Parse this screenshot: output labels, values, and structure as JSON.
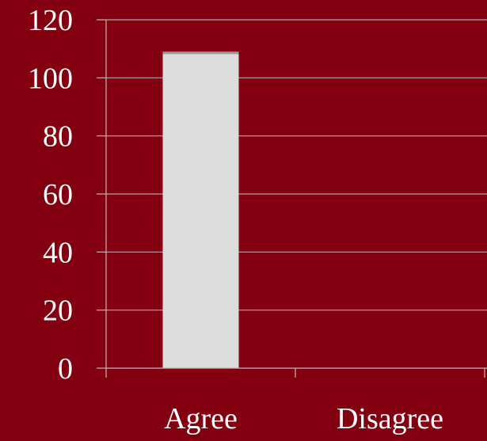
{
  "chart_data": {
    "type": "bar",
    "categories": [
      "Agree",
      "Disagree"
    ],
    "values": [
      109,
      0
    ],
    "title": "",
    "xlabel": "",
    "ylabel": "",
    "ylim": [
      0,
      120
    ],
    "yticks": [
      0,
      20,
      40,
      60,
      80,
      100,
      120
    ],
    "grid": true,
    "legend": "none",
    "colors": {
      "background": "#820010",
      "bar": "#dcdcdc",
      "bar_top_edge": "#9a9a9a",
      "gridline": "#b9a2a6",
      "text": "#ffffff"
    }
  }
}
